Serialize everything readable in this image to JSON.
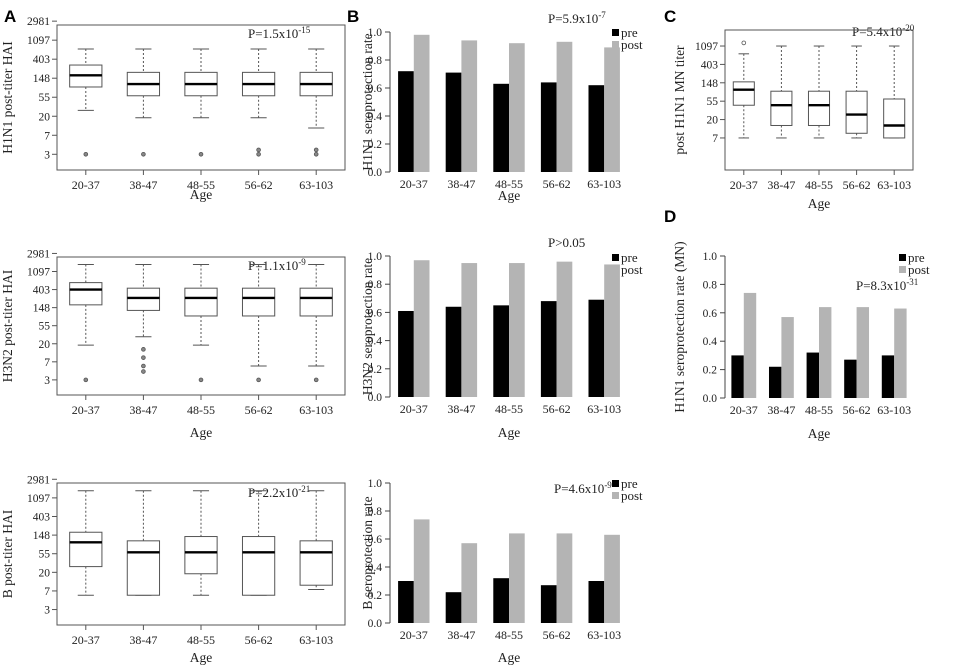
{
  "chart_data": [
    {
      "id": "A1",
      "type": "box",
      "panel_letter": "A",
      "ylabel": "H1N1 post-titer HAI",
      "xlabel": "Age",
      "categories": [
        "20-37",
        "38-47",
        "48-55",
        "56-62",
        "63-103"
      ],
      "yticks": [
        "3",
        "7",
        "20",
        "55",
        "148",
        "403",
        "1097",
        "2981"
      ],
      "p_value": {
        "prefix": "P=1.5x10",
        "exp": "-15"
      },
      "boxes": [
        {
          "q1": 6.4,
          "median": 7.2,
          "q3": 7.9,
          "low": 4.8,
          "high": 9.0,
          "outliers": [
            1.8
          ]
        },
        {
          "q1": 5.8,
          "median": 6.6,
          "q3": 7.4,
          "low": 4.3,
          "high": 9.0,
          "outliers": [
            1.8
          ]
        },
        {
          "q1": 5.8,
          "median": 6.6,
          "q3": 7.4,
          "low": 4.3,
          "high": 9.0,
          "outliers": [
            1.8
          ]
        },
        {
          "q1": 5.8,
          "median": 6.6,
          "q3": 7.4,
          "low": 4.3,
          "high": 9.0,
          "outliers": [
            2.1,
            1.8
          ]
        },
        {
          "q1": 5.8,
          "median": 6.6,
          "q3": 7.4,
          "low": 3.6,
          "high": 9.0,
          "outliers": [
            2.1,
            1.8
          ]
        }
      ]
    },
    {
      "id": "A2",
      "type": "box",
      "ylabel": "H3N2 post-titer HAI",
      "xlabel": "Age",
      "categories": [
        "20-37",
        "38-47",
        "48-55",
        "56-62",
        "63-103"
      ],
      "yticks": [
        "3",
        "7",
        "20",
        "55",
        "148",
        "403",
        "1097",
        "2981"
      ],
      "p_value": {
        "prefix": "P=1.1x10",
        "exp": "-9"
      },
      "boxes": [
        {
          "q1": 7.2,
          "median": 8.3,
          "q3": 8.8,
          "low": 4.3,
          "high": 10.1,
          "outliers": [
            1.8
          ]
        },
        {
          "q1": 6.8,
          "median": 7.7,
          "q3": 8.4,
          "low": 4.9,
          "high": 10.1,
          "outliers": [
            4.0,
            3.4,
            2.8,
            2.4
          ]
        },
        {
          "q1": 6.4,
          "median": 7.7,
          "q3": 8.4,
          "low": 4.3,
          "high": 10.1,
          "outliers": [
            1.8
          ]
        },
        {
          "q1": 6.4,
          "median": 7.7,
          "q3": 8.4,
          "low": 2.8,
          "high": 10.1,
          "outliers": [
            1.8
          ]
        },
        {
          "q1": 6.4,
          "median": 7.7,
          "q3": 8.4,
          "low": 2.8,
          "high": 10.1,
          "outliers": [
            1.8
          ]
        }
      ]
    },
    {
      "id": "A3",
      "type": "box",
      "ylabel": "B post-titer HAI",
      "xlabel": "Age",
      "categories": [
        "20-37",
        "38-47",
        "48-55",
        "56-62",
        "63-103"
      ],
      "yticks": [
        "3",
        "7",
        "20",
        "55",
        "148",
        "403",
        "1097",
        "2981"
      ],
      "p_value": {
        "prefix": "P=2.2x10",
        "exp": "-21"
      },
      "boxes": [
        {
          "q1": 4.8,
          "median": 6.5,
          "q3": 7.2,
          "low": 2.8,
          "high": 10.1,
          "outliers": []
        },
        {
          "q1": 2.8,
          "median": 5.8,
          "q3": 6.6,
          "low": 2.8,
          "high": 10.1,
          "outliers": []
        },
        {
          "q1": 4.3,
          "median": 5.8,
          "q3": 6.9,
          "low": 2.8,
          "high": 10.1,
          "outliers": []
        },
        {
          "q1": 2.8,
          "median": 5.8,
          "q3": 6.9,
          "low": 2.8,
          "high": 10.1,
          "outliers": []
        },
        {
          "q1": 3.5,
          "median": 5.8,
          "q3": 6.6,
          "low": 3.2,
          "high": 10.1,
          "outliers": []
        }
      ]
    },
    {
      "id": "B1",
      "type": "bar",
      "panel_letter": "B",
      "ylabel": "H1N1 seroprotection rate",
      "xlabel": "Age",
      "categories": [
        "20-37",
        "38-47",
        "48-55",
        "56-62",
        "63-103"
      ],
      "ylim": [
        0,
        1.0
      ],
      "yticks": [
        "0.0",
        "0.2",
        "0.4",
        "0.6",
        "0.8",
        "1.0"
      ],
      "legend": [
        "pre",
        "post"
      ],
      "p_value": {
        "prefix": "P=5.9x10",
        "exp": "-7"
      },
      "series": [
        {
          "name": "pre",
          "color": "#000000",
          "values": [
            0.72,
            0.71,
            0.63,
            0.64,
            0.62
          ]
        },
        {
          "name": "post",
          "color": "#b4b4b4",
          "values": [
            0.98,
            0.94,
            0.92,
            0.93,
            0.89
          ]
        }
      ]
    },
    {
      "id": "B2",
      "type": "bar",
      "ylabel": "H3N2 seroprotection rate",
      "xlabel": "Age",
      "categories": [
        "20-37",
        "38-47",
        "48-55",
        "56-62",
        "63-103"
      ],
      "ylim": [
        0,
        1.0
      ],
      "yticks": [
        "0.0",
        "0.2",
        "0.4",
        "0.6",
        "0.8",
        "1.0"
      ],
      "legend": [
        "pre",
        "post"
      ],
      "p_value": {
        "prefix": "P>0.05",
        "exp": ""
      },
      "series": [
        {
          "name": "pre",
          "color": "#000000",
          "values": [
            0.61,
            0.64,
            0.65,
            0.68,
            0.69
          ]
        },
        {
          "name": "post",
          "color": "#b4b4b4",
          "values": [
            0.97,
            0.95,
            0.95,
            0.96,
            0.94
          ]
        }
      ]
    },
    {
      "id": "B3",
      "type": "bar",
      "ylabel": "B seroprotection rate",
      "xlabel": "Age",
      "categories": [
        "20-37",
        "38-47",
        "48-55",
        "56-62",
        "63-103"
      ],
      "ylim": [
        0,
        1.0
      ],
      "yticks": [
        "0.0",
        "0.2",
        "0.4",
        "0.6",
        "0.8",
        "1.0"
      ],
      "legend": [
        "pre",
        "post"
      ],
      "p_value": {
        "prefix": "P=4.6x10",
        "exp": "-9"
      },
      "series": [
        {
          "name": "pre",
          "color": "#000000",
          "values": [
            0.3,
            0.22,
            0.32,
            0.27,
            0.3
          ]
        },
        {
          "name": "post",
          "color": "#b4b4b4",
          "values": [
            0.74,
            0.57,
            0.64,
            0.64,
            0.63
          ]
        }
      ]
    },
    {
      "id": "C",
      "type": "box",
      "panel_letter": "C",
      "ylabel": "post H1N1 MN titer",
      "xlabel": "Age",
      "categories": [
        "20-37",
        "38-47",
        "48-55",
        "56-62",
        "63-103"
      ],
      "yticks": [
        "7",
        "20",
        "55",
        "148",
        "403",
        "1097"
      ],
      "p_value": {
        "prefix": "P=5.4x10",
        "exp": "-20"
      },
      "boxes": [
        {
          "q1": 4.9,
          "median": 5.9,
          "q3": 6.4,
          "low": 2.8,
          "high": 8.2,
          "outliers": [
            8.9
          ]
        },
        {
          "q1": 3.6,
          "median": 4.9,
          "q3": 5.8,
          "low": 2.8,
          "high": 8.7,
          "outliers": []
        },
        {
          "q1": 3.6,
          "median": 4.9,
          "q3": 5.8,
          "low": 2.8,
          "high": 8.7,
          "outliers": []
        },
        {
          "q1": 3.1,
          "median": 4.3,
          "q3": 5.8,
          "low": 2.8,
          "high": 8.7,
          "outliers": []
        },
        {
          "q1": 2.8,
          "median": 3.6,
          "q3": 5.3,
          "low": 2.8,
          "high": 8.7,
          "outliers": []
        }
      ]
    },
    {
      "id": "D",
      "type": "bar",
      "panel_letter": "D",
      "ylabel": "H1N1 seroprotection rate (MN)",
      "xlabel": "Age",
      "categories": [
        "20-37",
        "38-47",
        "48-55",
        "56-62",
        "63-103"
      ],
      "ylim": [
        0,
        1.0
      ],
      "yticks": [
        "0.0",
        "0.2",
        "0.4",
        "0.6",
        "0.8",
        "1.0"
      ],
      "legend": [
        "pre",
        "post"
      ],
      "p_value": {
        "prefix": "P=8.3x10",
        "exp": "-31"
      },
      "series": [
        {
          "name": "pre",
          "color": "#000000",
          "values": [
            0.3,
            0.22,
            0.32,
            0.27,
            0.3
          ]
        },
        {
          "name": "post",
          "color": "#b4b4b4",
          "values": [
            0.74,
            0.57,
            0.64,
            0.64,
            0.63
          ]
        }
      ]
    }
  ]
}
